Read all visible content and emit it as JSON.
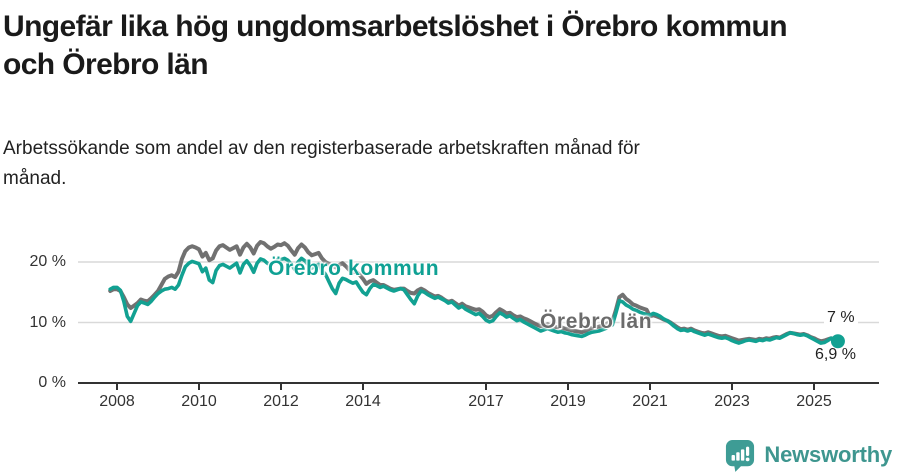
{
  "header": {
    "title_line1": "Ungefär lika hög ungdomsarbetslöshet i Örebro kommun",
    "title_line2": "och Örebro län",
    "subtitle_line1": "Arbetssökande som andel av den registerbaserade arbetskraften månad för",
    "subtitle_line2": "månad."
  },
  "footer": {
    "brand": "Newsworthy",
    "logo_icon": "newsworthy-speech-bubble-bar-chart-icon",
    "brand_color": "#3E968F",
    "icon_color": "#3E9C95"
  },
  "colors": {
    "axis": "#333333",
    "grid": "#d9d9d9",
    "tick_text": "#333333",
    "title": "#1a1a1a",
    "subtitle": "#222222",
    "kommun_teal": "#12A192",
    "lan_gray": "#717171"
  },
  "chart_data": {
    "type": "line",
    "title": "Ungefär lika hög ungdomsarbetslöshet i Örebro kommun och Örebro län",
    "subtitle": "Arbetssökande som andel av den registerbaserade arbetskraften månad för månad.",
    "unit": "%",
    "frequency": "monthly",
    "x_start": {
      "year": 2007,
      "month": 11
    },
    "x_end": {
      "year": 2025,
      "month": 8
    },
    "xlim": [
      2007.75,
      2025.9
    ],
    "ylim": [
      0,
      24.5
    ],
    "grid": "horizontal",
    "x_tick_years": [
      2008,
      2010,
      2012,
      2014,
      2017,
      2019,
      2021,
      2023,
      2025
    ],
    "x_tick_labels": [
      "2008",
      "2010",
      "2012",
      "2014",
      "2017",
      "2019",
      "2021",
      "2023",
      "2025"
    ],
    "y_ticks": [
      {
        "value": 0,
        "label": "0 %"
      },
      {
        "value": 10,
        "label": "10 %"
      },
      {
        "value": 20,
        "label": "20 %"
      }
    ],
    "series": [
      {
        "name": "Örebro län",
        "color": "#717171",
        "label_color": "#6b6b6b",
        "end_value_label": "7 %",
        "values": [
          15.2,
          15.5,
          15.5,
          15.2,
          14.2,
          13.0,
          12.4,
          12.8,
          13.2,
          13.8,
          13.6,
          13.5,
          14.0,
          14.6,
          15.2,
          16.2,
          17.2,
          17.6,
          17.8,
          17.5,
          18.4,
          20.5,
          21.8,
          22.4,
          22.6,
          22.4,
          22.1,
          20.9,
          21.5,
          20.3,
          20.6,
          21.9,
          22.6,
          22.8,
          22.4,
          22.0,
          22.3,
          22.6,
          21.2,
          22.4,
          23.0,
          22.4,
          21.4,
          22.7,
          23.3,
          23.1,
          22.6,
          22.2,
          22.5,
          22.9,
          22.8,
          23.1,
          22.7,
          21.9,
          21.2,
          22.3,
          22.9,
          22.4,
          21.6,
          21.1,
          21.3,
          21.5,
          20.6,
          20.0,
          19.7,
          19.4,
          19.1,
          19.5,
          19.8,
          19.3,
          18.7,
          18.3,
          18.4,
          17.9,
          17.2,
          16.4,
          16.8,
          17.0,
          16.6,
          16.2,
          16.2,
          15.9,
          15.6,
          15.4,
          15.5,
          15.6,
          15.6,
          15.2,
          14.9,
          14.8,
          15.3,
          15.6,
          15.3,
          14.9,
          14.6,
          14.3,
          14.4,
          14.1,
          13.7,
          13.4,
          13.6,
          13.2,
          12.8,
          13.1,
          12.7,
          12.5,
          12.3,
          12.1,
          12.2,
          11.8,
          11.2,
          10.9,
          11.1,
          11.7,
          12.2,
          11.9,
          11.5,
          11.6,
          11.2,
          10.9,
          11.0,
          10.7,
          10.5,
          10.2,
          9.9,
          9.6,
          9.4,
          9.5,
          9.7,
          9.5,
          9.3,
          9.2,
          9.2,
          9.0,
          8.9,
          8.7,
          8.6,
          8.5,
          8.4,
          8.6,
          8.9,
          9.1,
          9.2,
          9.3,
          9.5,
          9.7,
          10.0,
          10.2,
          12.0,
          14.2,
          14.6,
          13.9,
          13.5,
          13.0,
          12.8,
          12.5,
          12.3,
          12.1,
          11.0,
          11.2,
          11.0,
          10.8,
          10.5,
          10.3,
          10.0,
          9.6,
          9.2,
          8.9,
          9.0,
          8.8,
          9.0,
          8.7,
          8.5,
          8.3,
          8.2,
          8.4,
          8.2,
          8.0,
          7.8,
          7.7,
          7.8,
          7.6,
          7.4,
          7.2,
          7.0,
          7.1,
          7.2,
          7.3,
          7.2,
          7.1,
          7.3,
          7.2,
          7.4,
          7.3,
          7.5,
          7.6,
          7.5,
          7.8,
          8.1,
          8.3,
          8.2,
          8.1,
          8.0,
          8.1,
          7.9,
          7.6,
          7.4,
          7.1,
          6.9,
          7.0,
          7.2,
          7.4,
          7.2,
          7.0
        ]
      },
      {
        "name": "Örebro kommun",
        "color": "#12A192",
        "label_color": "#0FA194",
        "end_value_label": "6,9 %",
        "values": [
          15.5,
          15.8,
          15.8,
          15.3,
          13.5,
          11.0,
          10.2,
          11.5,
          12.8,
          13.4,
          13.2,
          13.0,
          13.5,
          14.2,
          14.8,
          15.2,
          15.5,
          15.6,
          15.8,
          15.5,
          16.2,
          17.8,
          19.2,
          19.8,
          20.1,
          19.9,
          19.7,
          18.4,
          19.0,
          17.0,
          16.6,
          18.6,
          19.4,
          19.6,
          19.3,
          19.0,
          19.4,
          19.8,
          18.2,
          19.6,
          20.2,
          19.4,
          18.3,
          19.8,
          20.5,
          20.3,
          19.8,
          19.5,
          20.0,
          20.4,
          20.4,
          20.6,
          20.3,
          19.6,
          18.8,
          20.0,
          20.6,
          20.2,
          19.5,
          19.0,
          19.3,
          19.6,
          18.6,
          18.0,
          16.8,
          15.6,
          14.8,
          16.5,
          17.3,
          17.1,
          16.8,
          16.5,
          16.7,
          15.8,
          15.0,
          14.6,
          15.6,
          16.3,
          16.1,
          15.8,
          16.0,
          15.7,
          15.4,
          15.2,
          15.4,
          15.6,
          15.4,
          14.6,
          13.8,
          13.1,
          14.4,
          15.2,
          15.0,
          14.6,
          14.3,
          14.0,
          14.2,
          13.9,
          13.6,
          13.2,
          13.4,
          12.9,
          12.4,
          12.7,
          12.2,
          11.9,
          11.6,
          11.3,
          11.5,
          11.0,
          10.4,
          10.1,
          10.3,
          11.0,
          11.6,
          11.3,
          10.9,
          11.1,
          10.7,
          10.3,
          10.5,
          10.1,
          9.8,
          9.5,
          9.2,
          8.9,
          8.6,
          8.8,
          9.0,
          8.8,
          8.6,
          8.4,
          8.5,
          8.3,
          8.2,
          8.0,
          7.9,
          7.8,
          7.7,
          7.9,
          8.2,
          8.4,
          8.5,
          8.6,
          8.8,
          9.0,
          9.4,
          9.6,
          11.5,
          13.6,
          13.4,
          12.9,
          12.6,
          12.2,
          12.0,
          11.7,
          11.5,
          11.3,
          11.2,
          11.5,
          11.3,
          11.0,
          10.6,
          10.3,
          9.9,
          9.4,
          9.0,
          8.7,
          8.8,
          8.6,
          8.8,
          8.5,
          8.3,
          8.1,
          7.9,
          8.1,
          7.9,
          7.7,
          7.5,
          7.4,
          7.5,
          7.3,
          7.0,
          6.8,
          6.6,
          6.8,
          7.0,
          7.1,
          7.0,
          6.9,
          7.1,
          7.0,
          7.2,
          7.1,
          7.3,
          7.5,
          7.4,
          7.7,
          8.0,
          8.3,
          8.2,
          8.0,
          7.9,
          8.0,
          7.8,
          7.5,
          7.2,
          6.9,
          6.6,
          6.7,
          7.0,
          7.4,
          7.2,
          6.9
        ]
      }
    ],
    "end_dot": {
      "series": "Örebro kommun",
      "value": 6.9
    },
    "legend_position": "inline-labels"
  }
}
